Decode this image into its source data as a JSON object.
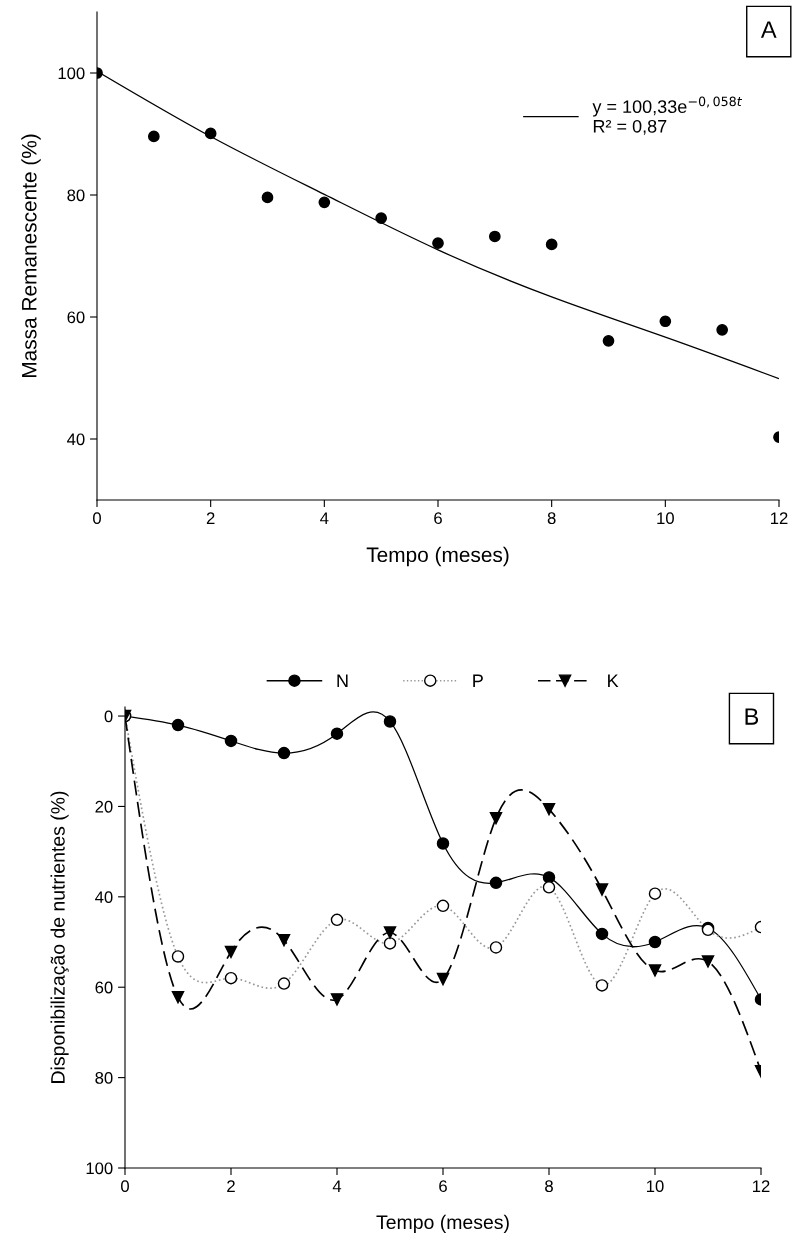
{
  "chart_data": [
    {
      "type": "scatter",
      "xlabel": "Tempo (meses)",
      "ylabel": "Massa Remanescente (%)",
      "annotations": [
        "A"
      ],
      "x": [
        0,
        1,
        2,
        3,
        4,
        5,
        6,
        7,
        8,
        9,
        10,
        11,
        12
      ],
      "xlim": [
        0,
        12
      ],
      "ylim": [
        30,
        110
      ],
      "xticks": [
        0,
        2,
        4,
        6,
        8,
        10,
        12
      ],
      "yticks": [
        40,
        60,
        80,
        100
      ],
      "legend": "top right",
      "grid": false,
      "marker": "circle",
      "series": [
        {
          "color": "#000000",
          "values": [
            100,
            89.6,
            90.1,
            79.6,
            78.8,
            76.2,
            72.1,
            73.2,
            71.9,
            56.1,
            59.3,
            57.9,
            40.3
          ]
        },
        {
          "type": "line",
          "name": "y = 100,33e$^{−0,058t}$\nR² = 0,87",
          "color": "#000000",
          "line_style": "solid",
          "marker": "none",
          "x": [
            0,
            2,
            4,
            6,
            8,
            10,
            12
          ],
          "values": [
            100.3,
            89.6,
            80.1,
            71.0,
            63.3,
            56.7,
            49.9
          ]
        }
      ]
    },
    {
      "type": "line",
      "xlabel": "Tempo (meses)",
      "ylabel": "Disponibilização de nutrientes (%)",
      "annotations": [
        "B"
      ],
      "x": [
        0,
        1,
        2,
        3,
        4,
        5,
        6,
        7,
        8,
        9,
        10,
        11,
        12
      ],
      "xlim": [
        0,
        12
      ],
      "ylim": [
        100,
        -2
      ],
      "xticks": [
        0,
        2,
        4,
        6,
        8,
        10,
        12
      ],
      "yticks": [
        0,
        20,
        40,
        60,
        80,
        100
      ],
      "legend": "top",
      "grid": false,
      "series": [
        {
          "name": "N",
          "color": "#000000",
          "marker": "circle",
          "line_style": "solid",
          "values": [
            0,
            2.0,
            5.5,
            8.2,
            3.9,
            1.2,
            28.2,
            36.9,
            35.7,
            48.2,
            50.0,
            46.9,
            62.7
          ]
        },
        {
          "name": "P",
          "color": "#999999",
          "colors": [
            "#ffffff",
            "#ffffff",
            "#ffffff",
            "#ffffff",
            "#ffffff",
            "#ffffff",
            "#ffffff",
            "#ffffff",
            "#ffffff",
            "#ffffff",
            "#ffffff",
            "#ffffff",
            "#ffffff"
          ],
          "marker": "circle",
          "line_style": "dotted",
          "values": [
            0,
            53.2,
            58.0,
            59.2,
            45.1,
            50.3,
            42.0,
            51.2,
            37.9,
            59.6,
            39.3,
            47.3,
            46.7
          ]
        },
        {
          "name": "K",
          "color": "#000000",
          "marker": "triangle",
          "line_style": "dashed",
          "values": [
            0,
            62.2,
            52.2,
            49.6,
            62.7,
            47.9,
            58.2,
            22.6,
            20.6,
            38.4,
            56.3,
            54.3,
            78.6
          ]
        }
      ]
    }
  ]
}
